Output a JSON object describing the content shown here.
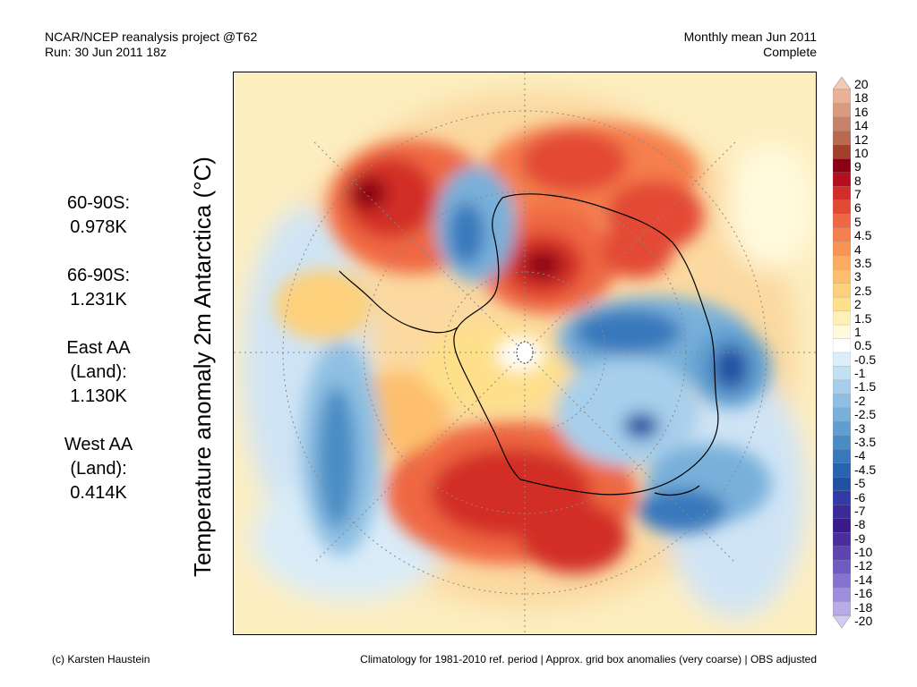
{
  "header": {
    "line1_left": "NCAR/NCEP reanalysis project @T62",
    "line2_left": "Run: 30 Jun 2011 18z",
    "line1_right": "Monthly mean Jun 2011",
    "line2_right": "Complete"
  },
  "axis_title": "Temperature anomaly 2m Antarctica (°C)",
  "stats": [
    {
      "lines": [
        "60-90S:",
        "0.978K"
      ]
    },
    {
      "lines": [
        "66-90S:",
        "1.231K"
      ]
    },
    {
      "lines": [
        "East AA",
        "(Land):",
        "1.130K"
      ]
    },
    {
      "lines": [
        "West AA",
        "(Land):",
        "0.414K"
      ]
    }
  ],
  "colorbar": {
    "labels": [
      "20",
      "18",
      "16",
      "14",
      "12",
      "10",
      "9",
      "8",
      "7",
      "6",
      "5",
      "4.5",
      "4",
      "3.5",
      "3",
      "2.5",
      "2",
      "1.5",
      "1",
      "0.5",
      "-0.5",
      "-1",
      "-1.5",
      "-2",
      "-2.5",
      "-3",
      "-3.5",
      "-4",
      "-4.5",
      "-5",
      "-6",
      "-7",
      "-8",
      "-9",
      "-10",
      "-12",
      "-14",
      "-16",
      "-18",
      "-20"
    ],
    "colors": [
      "#f4c9b4",
      "#e8b198",
      "#d99a7f",
      "#c9826a",
      "#b8694f",
      "#a3402b",
      "#8b0015",
      "#b30f1e",
      "#d22d28",
      "#e34a34",
      "#ef6843",
      "#f57f4e",
      "#f99457",
      "#fbab62",
      "#fdbf6e",
      "#fdd07b",
      "#fee08b",
      "#fff0b8",
      "#fffadc",
      "#ffffff",
      "#ddeefa",
      "#c4e0f3",
      "#a7cfec",
      "#8fc0e3",
      "#78b0da",
      "#5f9ed0",
      "#4a8dc5",
      "#3778bc",
      "#2863b0",
      "#2151a3",
      "#3439a8",
      "#3a2a9a",
      "#3b1a8a",
      "#4a2ea0",
      "#5c44b3",
      "#6f5ac2",
      "#8574cf",
      "#9d8fdc",
      "#b7abe8",
      "#d3cbf3"
    ]
  },
  "footer": {
    "left": "(c) Karsten Haustein",
    "right": "Climatology for 1981-2010 ref. period | Approx. grid box anomalies (very coarse) | OBS adjusted"
  },
  "map": {
    "projection": "south-polar-stereographic",
    "region": "Antarctica"
  }
}
